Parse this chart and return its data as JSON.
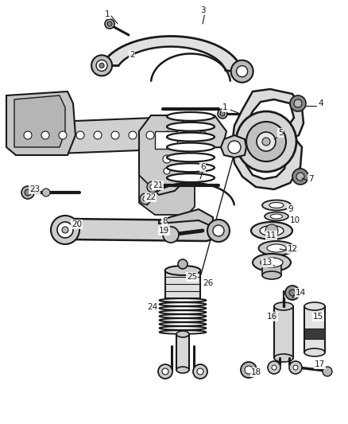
{
  "bg_color": "#ffffff",
  "line_color": "#1a1a1a",
  "label_color": "#1a1a1a",
  "gray_fill": "#d8d8d8",
  "mid_gray": "#b8b8b8",
  "dark_gray": "#888888",
  "figsize": [
    4.38,
    5.33
  ],
  "dpi": 100,
  "labels": [
    [
      132,
      18,
      "1"
    ],
    [
      252,
      13,
      "3"
    ],
    [
      163,
      69,
      "2"
    ],
    [
      280,
      135,
      "1"
    ],
    [
      400,
      130,
      "4"
    ],
    [
      350,
      167,
      "5"
    ],
    [
      252,
      210,
      "6"
    ],
    [
      388,
      225,
      "7"
    ],
    [
      204,
      278,
      "8"
    ],
    [
      362,
      263,
      "9"
    ],
    [
      365,
      277,
      "10"
    ],
    [
      335,
      296,
      "11"
    ],
    [
      362,
      313,
      "12"
    ],
    [
      330,
      330,
      "13"
    ],
    [
      372,
      368,
      "14"
    ],
    [
      394,
      398,
      "15"
    ],
    [
      336,
      398,
      "16"
    ],
    [
      396,
      458,
      "17"
    ],
    [
      316,
      468,
      "18"
    ],
    [
      200,
      290,
      "19"
    ],
    [
      90,
      282,
      "20"
    ],
    [
      192,
      233,
      "21"
    ],
    [
      183,
      248,
      "22"
    ],
    [
      37,
      238,
      "23"
    ],
    [
      185,
      386,
      "24"
    ],
    [
      235,
      348,
      "25"
    ],
    [
      255,
      356,
      "26"
    ]
  ]
}
